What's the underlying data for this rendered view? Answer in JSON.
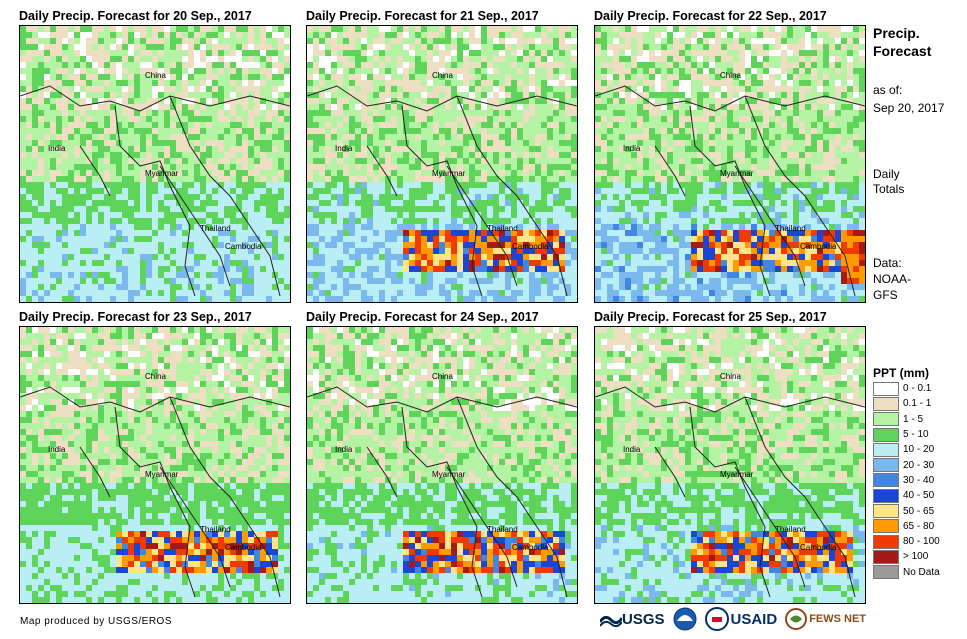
{
  "panels": [
    {
      "title": "Daily Precip. Forecast for 20 Sep., 2017",
      "intensity": 0.55,
      "heavy": []
    },
    {
      "title": "Daily Precip. Forecast for 21 Sep., 2017",
      "intensity": 0.7,
      "heavy": [
        "south"
      ]
    },
    {
      "title": "Daily Precip. Forecast for 22 Sep., 2017",
      "intensity": 0.75,
      "heavy": [
        "south",
        "east"
      ]
    },
    {
      "title": "Daily Precip. Forecast for 23 Sep., 2017",
      "intensity": 0.45,
      "heavy": [
        "south"
      ]
    },
    {
      "title": "Daily Precip. Forecast for 24 Sep., 2017",
      "intensity": 0.5,
      "heavy": [
        "south"
      ]
    },
    {
      "title": "Daily Precip. Forecast for 25 Sep., 2017",
      "intensity": 0.55,
      "heavy": [
        "south"
      ]
    }
  ],
  "map_labels": {
    "china": "China",
    "india": "India",
    "myanmar": "Myanmar",
    "thailand": "Thailand",
    "cambodia": "Cambodia"
  },
  "side": {
    "title": "Precip. Forecast",
    "asof_label": "as of:",
    "asof_date": "Sep 20, 2017",
    "totals_1": "Daily",
    "totals_2": "Totals",
    "data_label": "Data:",
    "data_1": "NOAA-",
    "data_2": "GFS"
  },
  "legend": {
    "title": "PPT (mm)",
    "items": [
      {
        "label": "0 - 0.1",
        "color": "#ffffff"
      },
      {
        "label": "0.1 - 1",
        "color": "#eedfc3"
      },
      {
        "label": "1 - 5",
        "color": "#b4f2a4"
      },
      {
        "label": "5 - 10",
        "color": "#5fd45a"
      },
      {
        "label": "10 - 20",
        "color": "#b9eef5"
      },
      {
        "label": "20 - 30",
        "color": "#7ab8ee"
      },
      {
        "label": "30 - 40",
        "color": "#3f87e3"
      },
      {
        "label": "40 - 50",
        "color": "#1a46d6"
      },
      {
        "label": "50 - 65",
        "color": "#ffe58a"
      },
      {
        "label": "65 - 80",
        "color": "#ff9a00"
      },
      {
        "label": "80 - 100",
        "color": "#f03a00"
      },
      {
        "label": "> 100",
        "color": "#a31a17"
      },
      {
        "label": "No Data",
        "color": "#9a9a9a"
      }
    ]
  },
  "footer": {
    "credit": "Map produced by USGS/EROS",
    "logos": {
      "usgs": "USGS",
      "usaid": "USAID",
      "fewsnet": "FEWS NET"
    }
  }
}
